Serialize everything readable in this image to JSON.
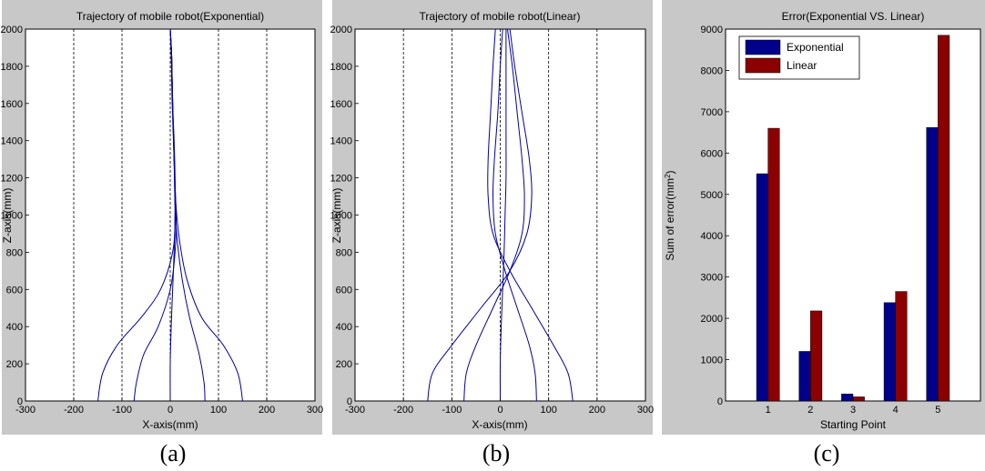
{
  "chart_data": [
    {
      "type": "line",
      "title": "Trajectory of mobile robot(Exponential)",
      "xlabel": "X-axis(mm)",
      "ylabel": "Z-axis(mm)",
      "xlim": [
        -300,
        300
      ],
      "ylim": [
        0,
        2000
      ],
      "xticks": [
        "-300",
        "-200",
        "-100",
        "0",
        "100",
        "200",
        "300"
      ],
      "yticks": [
        "0",
        "200",
        "400",
        "600",
        "800",
        "1000",
        "1200",
        "1400",
        "1600",
        "1800",
        "2000"
      ],
      "reference_lines_x": [
        -200,
        -100,
        0,
        100,
        200
      ],
      "series_color": "#0000a0",
      "series": [
        {
          "x": [
            -150,
            -140,
            -110,
            -60,
            -20,
            5,
            10,
            8,
            5,
            3,
            0
          ],
          "y": [
            0,
            150,
            300,
            450,
            600,
            800,
            1000,
            1300,
            1600,
            1850,
            2000
          ]
        },
        {
          "x": [
            -75,
            -70,
            -55,
            -25,
            0,
            10,
            12,
            8,
            4,
            2,
            0
          ],
          "y": [
            0,
            100,
            250,
            400,
            600,
            800,
            1000,
            1300,
            1600,
            1850,
            2000
          ]
        },
        {
          "x": [
            0,
            0,
            2,
            5,
            8,
            10,
            10,
            8,
            5,
            3,
            0
          ],
          "y": [
            0,
            200,
            400,
            600,
            800,
            1000,
            1200,
            1400,
            1600,
            1850,
            2000
          ]
        },
        {
          "x": [
            72,
            70,
            60,
            40,
            25,
            15,
            10,
            8,
            5,
            3,
            0
          ],
          "y": [
            0,
            100,
            250,
            450,
            650,
            850,
            1050,
            1300,
            1600,
            1850,
            2000
          ]
        },
        {
          "x": [
            150,
            140,
            110,
            65,
            35,
            20,
            12,
            8,
            5,
            3,
            0
          ],
          "y": [
            0,
            150,
            300,
            450,
            650,
            850,
            1050,
            1300,
            1600,
            1850,
            2000
          ]
        }
      ]
    },
    {
      "type": "line",
      "title": "Trajectory of mobile robot(Linear)",
      "xlabel": "X-axis(mm)",
      "ylabel": "Z-axis(mm)",
      "xlim": [
        -300,
        300
      ],
      "ylim": [
        0,
        2000
      ],
      "xticks": [
        "-300",
        "-200",
        "-100",
        "0",
        "100",
        "200",
        "300"
      ],
      "yticks": [
        "0",
        "200",
        "400",
        "600",
        "800",
        "1000",
        "1200",
        "1400",
        "1600",
        "1800",
        "2000"
      ],
      "reference_lines_x": [
        -200,
        -100,
        0,
        100,
        200
      ],
      "series_color": "#0000a0",
      "series": [
        {
          "x": [
            -150,
            -140,
            -100,
            -40,
            20,
            55,
            65,
            60,
            45,
            30,
            20
          ],
          "y": [
            0,
            150,
            300,
            500,
            700,
            900,
            1100,
            1300,
            1550,
            1800,
            2000
          ]
        },
        {
          "x": [
            -75,
            -70,
            -50,
            -15,
            20,
            45,
            50,
            45,
            35,
            25,
            15
          ],
          "y": [
            0,
            150,
            300,
            500,
            700,
            900,
            1100,
            1300,
            1550,
            1800,
            2000
          ]
        },
        {
          "x": [
            0,
            0,
            2,
            5,
            8,
            10,
            12,
            12,
            12,
            12,
            12
          ],
          "y": [
            0,
            200,
            400,
            600,
            800,
            1000,
            1200,
            1400,
            1600,
            1800,
            2000
          ]
        },
        {
          "x": [
            75,
            72,
            60,
            35,
            10,
            -10,
            -15,
            -12,
            -5,
            0,
            5
          ],
          "y": [
            0,
            150,
            300,
            500,
            700,
            900,
            1100,
            1300,
            1550,
            1800,
            2000
          ]
        },
        {
          "x": [
            150,
            140,
            110,
            65,
            20,
            -15,
            -25,
            -25,
            -20,
            -15,
            -10
          ],
          "y": [
            0,
            150,
            300,
            500,
            700,
            900,
            1100,
            1300,
            1550,
            1800,
            2000
          ]
        }
      ]
    },
    {
      "type": "bar",
      "title": "Error(Exponential VS. Linear)",
      "xlabel": "Starting Point",
      "ylabel_prefix": "Sum of error(mm",
      "ylabel_sup": "2",
      "ylabel_suffix": ")",
      "categories": [
        "1",
        "2",
        "3",
        "4",
        "5"
      ],
      "ylim": [
        0,
        9000
      ],
      "yticks": [
        "0",
        "1000",
        "2000",
        "3000",
        "4000",
        "5000",
        "6000",
        "7000",
        "8000",
        "9000"
      ],
      "legend_position": "top-left",
      "series": [
        {
          "name": "Exponential",
          "color": "#00008b",
          "values": [
            5500,
            1200,
            170,
            2380,
            6620
          ]
        },
        {
          "name": "Linear",
          "color": "#8b0000",
          "values": [
            6600,
            2180,
            100,
            2650,
            8850
          ]
        }
      ]
    }
  ],
  "captions": [
    "(a)",
    "(b)",
    "(c)"
  ]
}
